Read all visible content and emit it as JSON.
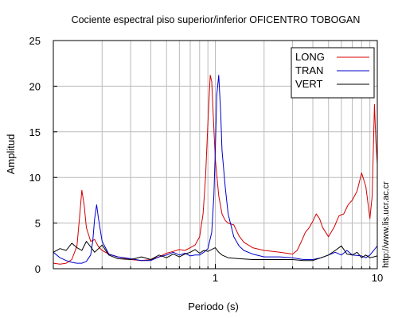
{
  "chart_data": {
    "type": "line",
    "title": "Cociente espectral piso superior/inferior OFICENTRO TOBOGAN",
    "xlabel": "Periodo (s)",
    "ylabel": "Amplitud",
    "xscale": "log",
    "xlim": [
      0.1,
      10
    ],
    "ylim": [
      0,
      25
    ],
    "x_ticks": [
      {
        "value": 1,
        "label": "1"
      },
      {
        "value": 10,
        "label": "10"
      }
    ],
    "y_ticks": [
      {
        "value": 0,
        "label": "0"
      },
      {
        "value": 5,
        "label": "5"
      },
      {
        "value": 10,
        "label": "10"
      },
      {
        "value": 15,
        "label": "15"
      },
      {
        "value": 20,
        "label": "20"
      },
      {
        "value": 25,
        "label": "25"
      }
    ],
    "grid": true,
    "legend_position": "top-right",
    "side_text": "http://www.lis.ucr.ac.cr",
    "series": [
      {
        "name": "LONG",
        "color": "#d40000",
        "points": [
          [
            0.1,
            0.6
          ],
          [
            0.11,
            0.5
          ],
          [
            0.12,
            0.6
          ],
          [
            0.13,
            1.0
          ],
          [
            0.14,
            2.5
          ],
          [
            0.145,
            5.5
          ],
          [
            0.15,
            8.6
          ],
          [
            0.155,
            7.0
          ],
          [
            0.16,
            4.5
          ],
          [
            0.17,
            3.0
          ],
          [
            0.18,
            3.2
          ],
          [
            0.19,
            2.4
          ],
          [
            0.2,
            2.0
          ],
          [
            0.22,
            1.6
          ],
          [
            0.25,
            1.3
          ],
          [
            0.3,
            1.0
          ],
          [
            0.35,
            0.9
          ],
          [
            0.4,
            1.0
          ],
          [
            0.45,
            1.3
          ],
          [
            0.5,
            1.7
          ],
          [
            0.55,
            1.9
          ],
          [
            0.6,
            2.1
          ],
          [
            0.65,
            2.0
          ],
          [
            0.7,
            2.3
          ],
          [
            0.75,
            2.6
          ],
          [
            0.8,
            3.5
          ],
          [
            0.84,
            6
          ],
          [
            0.87,
            10
          ],
          [
            0.9,
            16
          ],
          [
            0.93,
            21.2
          ],
          [
            0.95,
            20.5
          ],
          [
            0.97,
            17
          ],
          [
            1.0,
            12
          ],
          [
            1.05,
            8
          ],
          [
            1.1,
            6
          ],
          [
            1.15,
            5.3
          ],
          [
            1.2,
            5.0
          ],
          [
            1.3,
            4.8
          ],
          [
            1.4,
            3.6
          ],
          [
            1.5,
            2.9
          ],
          [
            1.7,
            2.3
          ],
          [
            2.0,
            2.0
          ],
          [
            2.5,
            1.8
          ],
          [
            3.0,
            1.6
          ],
          [
            3.2,
            2.0
          ],
          [
            3.4,
            3.0
          ],
          [
            3.6,
            4.0
          ],
          [
            3.8,
            4.5
          ],
          [
            4.0,
            5.2
          ],
          [
            4.2,
            6.0
          ],
          [
            4.4,
            5.5
          ],
          [
            4.6,
            4.5
          ],
          [
            5.0,
            3.5
          ],
          [
            5.4,
            4.5
          ],
          [
            5.8,
            5.8
          ],
          [
            6.2,
            6.0
          ],
          [
            6.6,
            7.0
          ],
          [
            7.0,
            7.5
          ],
          [
            7.5,
            8.5
          ],
          [
            8.0,
            10.5
          ],
          [
            8.5,
            9.0
          ],
          [
            9.0,
            5.5
          ],
          [
            9.3,
            8.0
          ],
          [
            9.6,
            18.0
          ],
          [
            9.8,
            14.0
          ],
          [
            10.0,
            11.5
          ]
        ]
      },
      {
        "name": "TRAN",
        "color": "#0000cc",
        "points": [
          [
            0.1,
            1.8
          ],
          [
            0.11,
            1.2
          ],
          [
            0.12,
            0.9
          ],
          [
            0.13,
            0.7
          ],
          [
            0.14,
            0.6
          ],
          [
            0.15,
            0.6
          ],
          [
            0.16,
            0.8
          ],
          [
            0.17,
            1.5
          ],
          [
            0.175,
            3.0
          ],
          [
            0.18,
            5.5
          ],
          [
            0.185,
            7.0
          ],
          [
            0.19,
            5.5
          ],
          [
            0.2,
            3.0
          ],
          [
            0.22,
            1.6
          ],
          [
            0.25,
            1.3
          ],
          [
            0.3,
            1.1
          ],
          [
            0.35,
            0.9
          ],
          [
            0.4,
            0.9
          ],
          [
            0.45,
            1.3
          ],
          [
            0.5,
            1.5
          ],
          [
            0.55,
            1.8
          ],
          [
            0.6,
            1.5
          ],
          [
            0.65,
            1.7
          ],
          [
            0.7,
            1.4
          ],
          [
            0.75,
            1.5
          ],
          [
            0.8,
            1.5
          ],
          [
            0.85,
            1.8
          ],
          [
            0.9,
            2.2
          ],
          [
            0.95,
            4
          ],
          [
            0.98,
            8
          ],
          [
            1.0,
            13
          ],
          [
            1.02,
            19
          ],
          [
            1.05,
            21.2
          ],
          [
            1.08,
            17
          ],
          [
            1.1,
            13
          ],
          [
            1.15,
            9
          ],
          [
            1.2,
            6
          ],
          [
            1.3,
            3.5
          ],
          [
            1.4,
            2.5
          ],
          [
            1.5,
            2.0
          ],
          [
            1.7,
            1.6
          ],
          [
            2.0,
            1.3
          ],
          [
            2.5,
            1.3
          ],
          [
            3.0,
            1.2
          ],
          [
            3.5,
            1.0
          ],
          [
            4.0,
            1.0
          ],
          [
            4.5,
            1.2
          ],
          [
            5.0,
            1.5
          ],
          [
            5.5,
            1.8
          ],
          [
            6.0,
            1.5
          ],
          [
            6.5,
            2.0
          ],
          [
            7.0,
            1.5
          ],
          [
            8.0,
            1.4
          ],
          [
            8.5,
            1.2
          ],
          [
            9.0,
            1.5
          ],
          [
            9.5,
            2.0
          ],
          [
            10.0,
            2.5
          ]
        ]
      },
      {
        "name": "VERT",
        "color": "#000000",
        "points": [
          [
            0.1,
            1.8
          ],
          [
            0.11,
            2.2
          ],
          [
            0.12,
            2.0
          ],
          [
            0.13,
            2.8
          ],
          [
            0.14,
            2.3
          ],
          [
            0.15,
            2.0
          ],
          [
            0.16,
            3.0
          ],
          [
            0.17,
            2.4
          ],
          [
            0.18,
            1.8
          ],
          [
            0.19,
            2.2
          ],
          [
            0.2,
            2.6
          ],
          [
            0.22,
            1.5
          ],
          [
            0.25,
            1.1
          ],
          [
            0.3,
            1.0
          ],
          [
            0.35,
            1.3
          ],
          [
            0.4,
            1.0
          ],
          [
            0.45,
            1.5
          ],
          [
            0.5,
            1.2
          ],
          [
            0.55,
            1.6
          ],
          [
            0.6,
            1.3
          ],
          [
            0.65,
            1.6
          ],
          [
            0.7,
            1.8
          ],
          [
            0.75,
            2.1
          ],
          [
            0.8,
            1.7
          ],
          [
            0.85,
            2.0
          ],
          [
            0.9,
            1.9
          ],
          [
            1.0,
            2.3
          ],
          [
            1.05,
            1.8
          ],
          [
            1.1,
            1.5
          ],
          [
            1.2,
            1.2
          ],
          [
            1.4,
            1.1
          ],
          [
            1.7,
            1.0
          ],
          [
            2.0,
            1.0
          ],
          [
            2.5,
            1.0
          ],
          [
            3.0,
            1.0
          ],
          [
            3.5,
            0.9
          ],
          [
            4.0,
            0.9
          ],
          [
            4.5,
            1.2
          ],
          [
            5.0,
            1.5
          ],
          [
            5.5,
            2.0
          ],
          [
            6.0,
            2.5
          ],
          [
            6.5,
            1.6
          ],
          [
            7.0,
            1.5
          ],
          [
            7.5,
            1.8
          ],
          [
            8.0,
            1.2
          ],
          [
            8.5,
            1.5
          ],
          [
            9.0,
            1.2
          ],
          [
            9.5,
            1.3
          ],
          [
            10.0,
            1.4
          ]
        ]
      }
    ]
  }
}
